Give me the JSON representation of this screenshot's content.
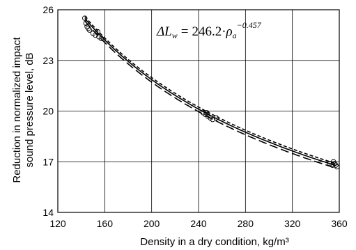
{
  "chart_data": {
    "type": "scatter",
    "title": "",
    "xlabel": "Density in a dry condition, kg/m³",
    "ylabel_lines": [
      "Reduction in normalized impact",
      "sound pressure level, dB"
    ],
    "xlim": [
      120,
      360
    ],
    "ylim": [
      14,
      26
    ],
    "xticks": [
      120,
      160,
      200,
      240,
      280,
      320,
      360
    ],
    "yticks": [
      14,
      17,
      20,
      23,
      26
    ],
    "grid": true,
    "equation": {
      "lhs": "ΔL",
      "lhs_sub": "w",
      "eq": "=",
      "coef": "246.2",
      "dot": "·",
      "var": "ρ",
      "var_sub": "a",
      "exponent": "−0.457"
    },
    "fit": {
      "coefficient": 246.2,
      "exponent": -0.457
    },
    "series": [
      {
        "style": "markers",
        "x": [
          143,
          144,
          145,
          146,
          147,
          150,
          152,
          154,
          155,
          157,
          244,
          246,
          247,
          248,
          250,
          252,
          255,
          352,
          354,
          355,
          356,
          357,
          358
        ],
        "y": [
          25.5,
          25.2,
          25.0,
          24.9,
          24.8,
          24.6,
          24.5,
          24.7,
          24.4,
          24.3,
          19.9,
          19.8,
          19.9,
          19.7,
          19.6,
          19.5,
          19.6,
          16.9,
          16.8,
          17.0,
          16.9,
          16.8,
          16.7
        ]
      },
      {
        "style": "solid",
        "offset": 0.0
      },
      {
        "style": "short-dash",
        "offset": 0.12
      },
      {
        "style": "long-dash",
        "offset": -0.15
      }
    ]
  }
}
